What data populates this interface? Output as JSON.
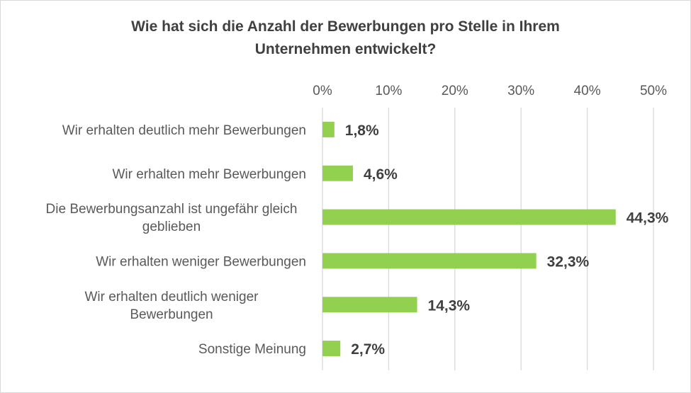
{
  "chart_data": {
    "type": "bar",
    "orientation": "horizontal",
    "title_lines": [
      "Wie hat sich die Anzahl der Bewerbungen pro Stelle in Ihrem",
      "Unternehmen entwickelt?"
    ],
    "categories": [
      "Wir erhalten deutlich mehr Bewerbungen",
      "Wir erhalten mehr Bewerbungen",
      "Die Bewerbungsanzahl ist ungefähr gleich geblieben",
      "Wir erhalten weniger Bewerbungen",
      "Wir erhalten deutlich weniger Bewerbungen",
      "Sonstige Meinung"
    ],
    "category_lines": [
      [
        "Wir erhalten deutlich mehr Bewerbungen"
      ],
      [
        "Wir erhalten mehr Bewerbungen"
      ],
      [
        "Die Bewerbungsanzahl ist ungefähr gleich",
        "geblieben"
      ],
      [
        "Wir erhalten weniger Bewerbungen"
      ],
      [
        "Wir erhalten deutlich weniger",
        "Bewerbungen"
      ],
      [
        "Sonstige Meinung"
      ]
    ],
    "values": [
      1.8,
      4.6,
      44.3,
      32.3,
      14.3,
      2.7
    ],
    "data_labels": [
      "1,8%",
      "4,6%",
      "44,3%",
      "32,3%",
      "14,3%",
      "2,7%"
    ],
    "xlim": [
      0,
      50
    ],
    "x_ticks": [
      0,
      10,
      20,
      30,
      40,
      50
    ],
    "x_tick_labels": [
      "0%",
      "10%",
      "20%",
      "30%",
      "40%",
      "50%"
    ],
    "x_axis_position": "top",
    "grid": true,
    "bar_color": "#92d050",
    "grid_color": "#d9d9d9"
  }
}
